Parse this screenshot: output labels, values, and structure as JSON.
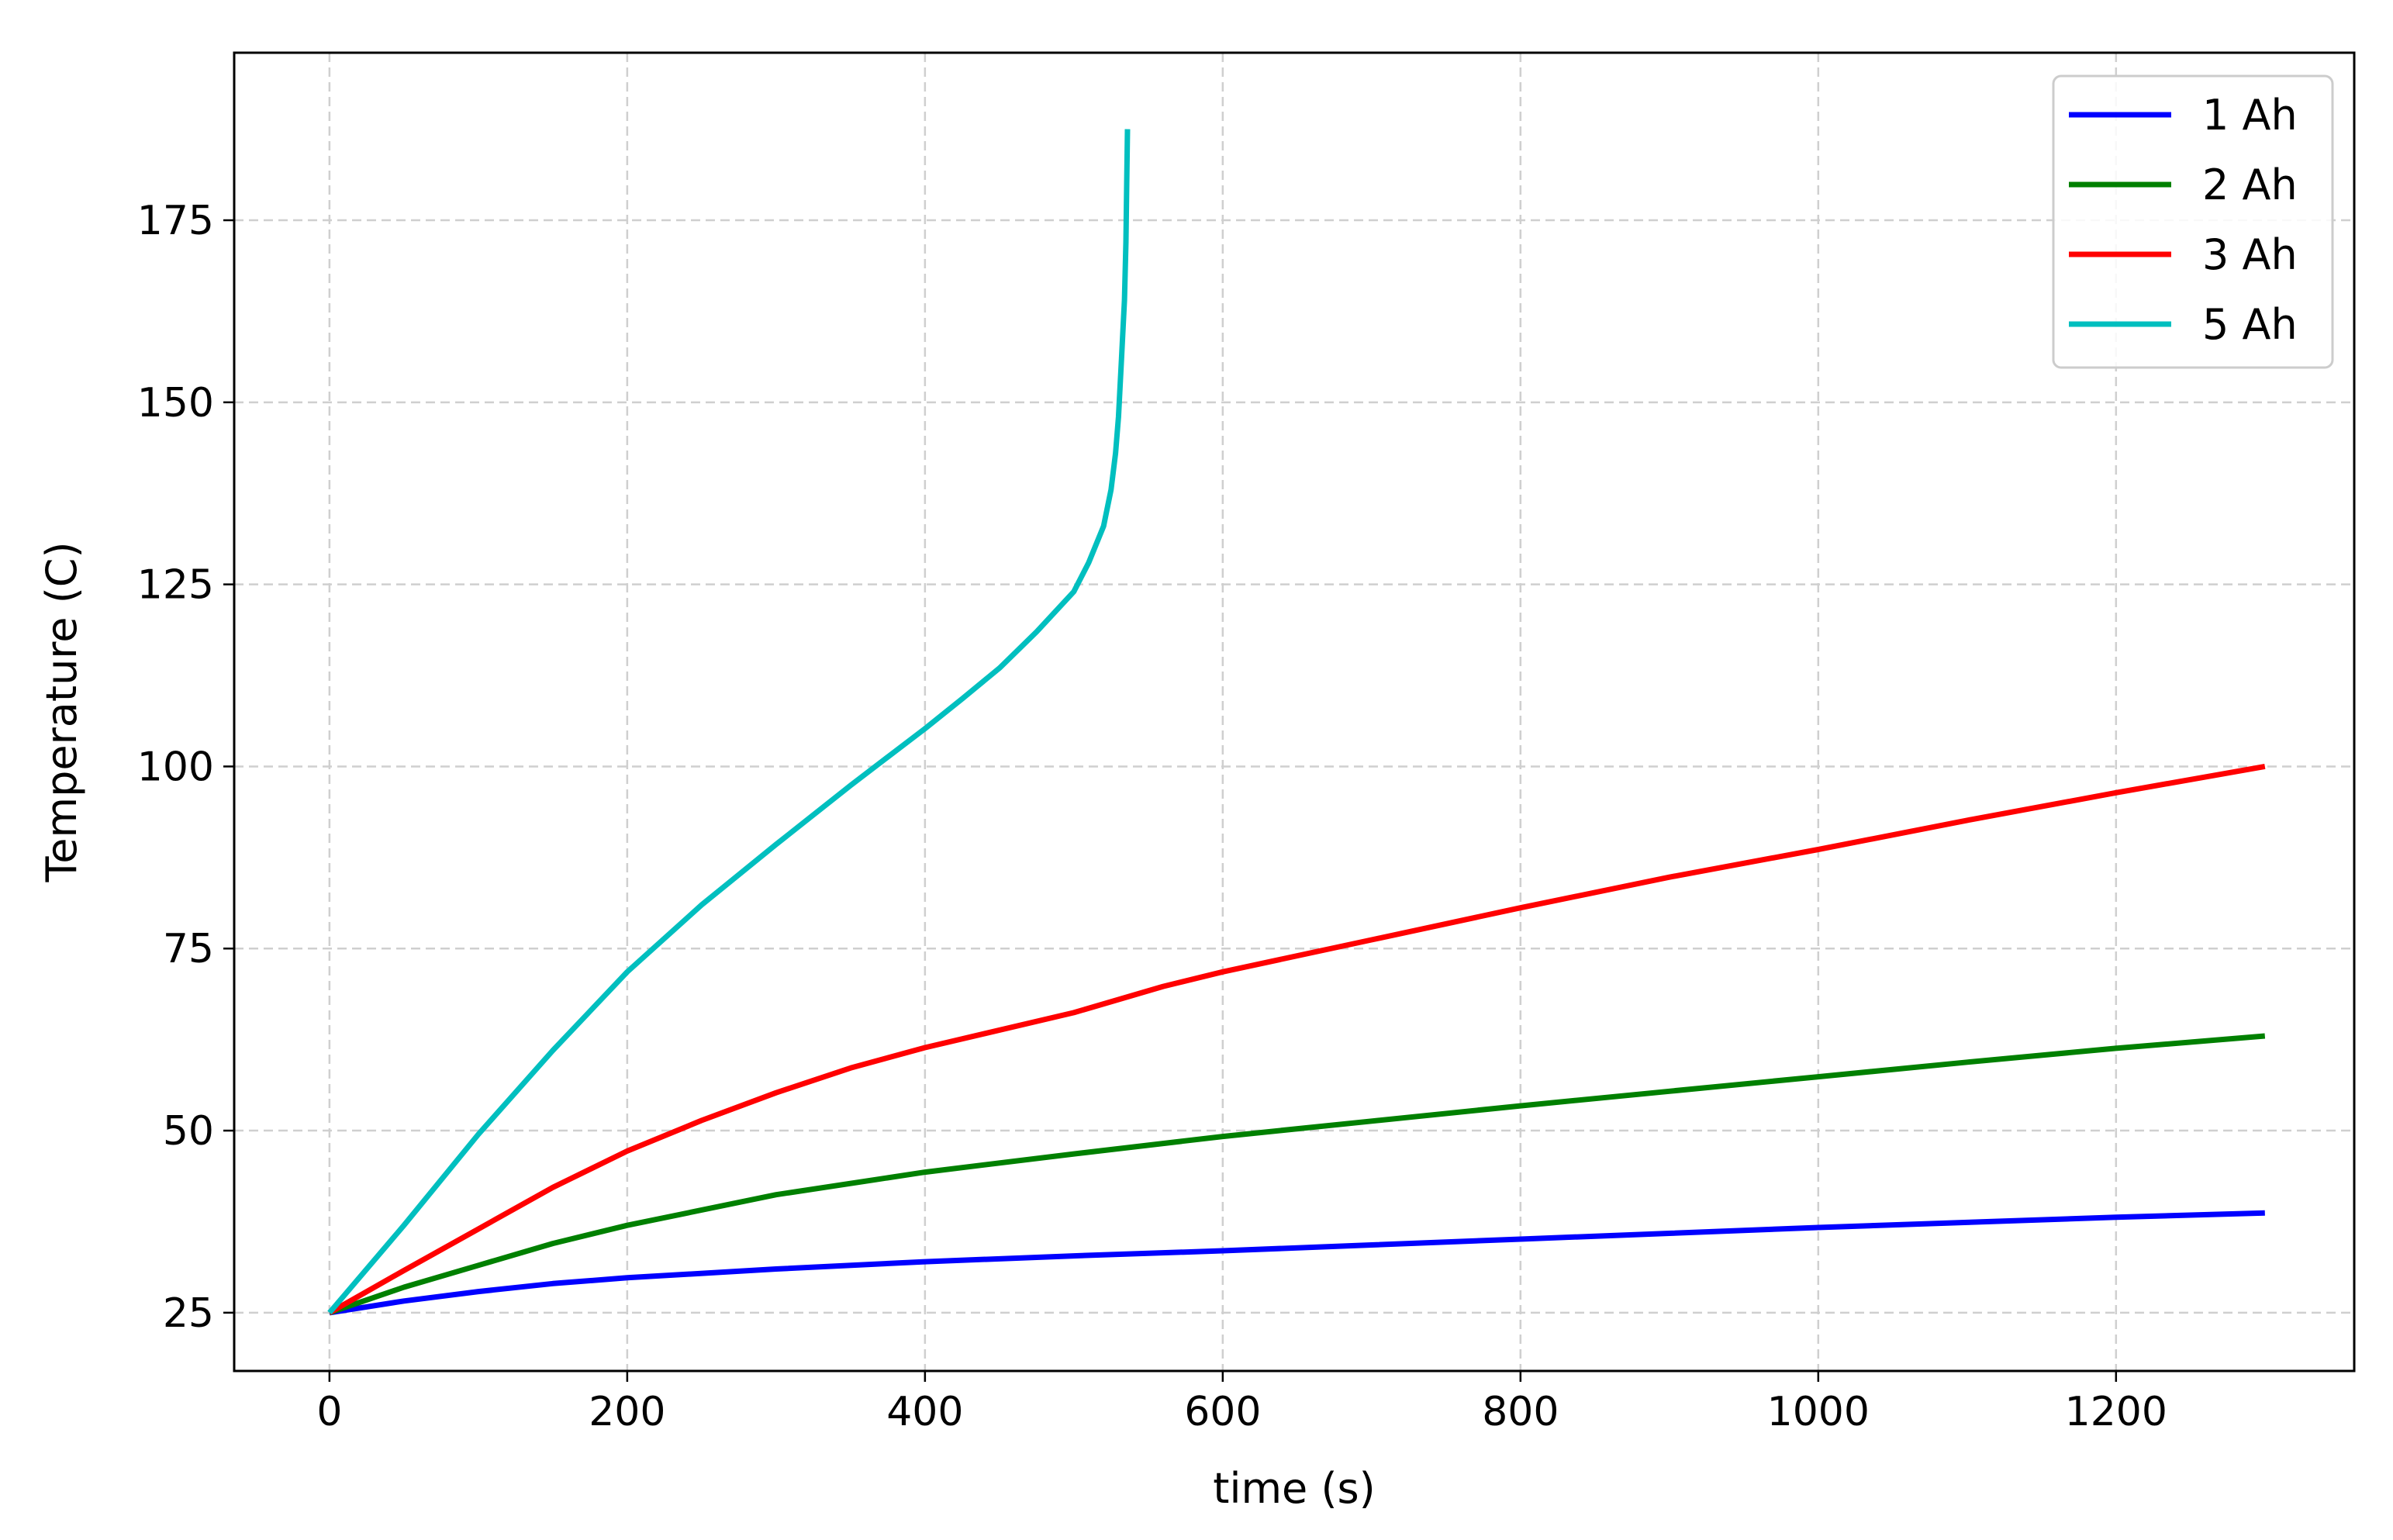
{
  "chart_data": {
    "type": "line",
    "title": "",
    "xlabel": "time (s)",
    "ylabel": "Temperature (C)",
    "xlim": [
      -64,
      1360
    ],
    "ylim": [
      17,
      198
    ],
    "xticks": [
      0,
      200,
      400,
      600,
      800,
      1000,
      1200
    ],
    "yticks": [
      25,
      50,
      75,
      100,
      125,
      150,
      175
    ],
    "grid": true,
    "legend_position": "top-right",
    "series": [
      {
        "name": "1 Ah",
        "color": "#0000ff",
        "points": [
          [
            0,
            25
          ],
          [
            50,
            26.6
          ],
          [
            100,
            27.9
          ],
          [
            150,
            29.0
          ],
          [
            200,
            29.8
          ],
          [
            300,
            31.0
          ],
          [
            400,
            32.0
          ],
          [
            500,
            32.8
          ],
          [
            600,
            33.5
          ],
          [
            700,
            34.3
          ],
          [
            800,
            35.1
          ],
          [
            900,
            35.9
          ],
          [
            1000,
            36.7
          ],
          [
            1100,
            37.4
          ],
          [
            1200,
            38.1
          ],
          [
            1300,
            38.7
          ]
        ]
      },
      {
        "name": "2 Ah",
        "color": "#008000",
        "points": [
          [
            0,
            25
          ],
          [
            50,
            28.5
          ],
          [
            100,
            31.5
          ],
          [
            150,
            34.5
          ],
          [
            200,
            37.0
          ],
          [
            300,
            41.2
          ],
          [
            400,
            44.3
          ],
          [
            500,
            46.8
          ],
          [
            600,
            49.2
          ],
          [
            700,
            51.3
          ],
          [
            800,
            53.4
          ],
          [
            900,
            55.4
          ],
          [
            1000,
            57.4
          ],
          [
            1100,
            59.4
          ],
          [
            1200,
            61.3
          ],
          [
            1300,
            63.0
          ]
        ]
      },
      {
        "name": "3 Ah",
        "color": "#ff0000",
        "points": [
          [
            0,
            25
          ],
          [
            50,
            30.8
          ],
          [
            100,
            36.5
          ],
          [
            150,
            42.2
          ],
          [
            200,
            47.2
          ],
          [
            250,
            51.4
          ],
          [
            300,
            55.2
          ],
          [
            350,
            58.6
          ],
          [
            400,
            61.4
          ],
          [
            500,
            66.2
          ],
          [
            560,
            69.8
          ],
          [
            600,
            71.8
          ],
          [
            700,
            76.2
          ],
          [
            800,
            80.6
          ],
          [
            900,
            84.8
          ],
          [
            1000,
            88.6
          ],
          [
            1100,
            92.6
          ],
          [
            1200,
            96.4
          ],
          [
            1300,
            100.0
          ]
        ]
      },
      {
        "name": "5 Ah",
        "color": "#00bfbf",
        "points": [
          [
            0,
            25
          ],
          [
            50,
            37.0
          ],
          [
            100,
            49.5
          ],
          [
            150,
            61.0
          ],
          [
            200,
            71.8
          ],
          [
            250,
            81.0
          ],
          [
            300,
            89.3
          ],
          [
            350,
            97.4
          ],
          [
            375,
            101.3
          ],
          [
            400,
            105.2
          ],
          [
            425,
            109.3
          ],
          [
            450,
            113.5
          ],
          [
            475,
            118.5
          ],
          [
            500,
            124.0
          ],
          [
            510,
            128.0
          ],
          [
            520,
            133.0
          ],
          [
            525,
            138.0
          ],
          [
            528,
            143.0
          ],
          [
            530,
            148.0
          ],
          [
            532,
            156.0
          ],
          [
            534,
            164.0
          ],
          [
            535,
            172.0
          ],
          [
            535.5,
            180.0
          ],
          [
            536,
            187.5
          ]
        ]
      }
    ]
  }
}
